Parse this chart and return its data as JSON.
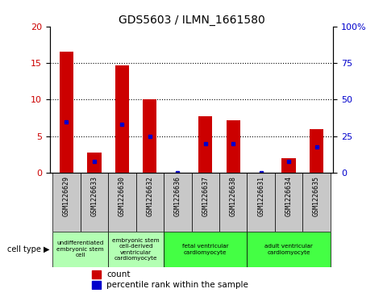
{
  "title": "GDS5603 / ILMN_1661580",
  "samples": [
    "GSM1226629",
    "GSM1226633",
    "GSM1226630",
    "GSM1226632",
    "GSM1226636",
    "GSM1226637",
    "GSM1226638",
    "GSM1226631",
    "GSM1226634",
    "GSM1226635"
  ],
  "counts": [
    16.5,
    2.8,
    14.7,
    10.0,
    0.0,
    7.7,
    7.2,
    0.0,
    2.0,
    6.0
  ],
  "percentiles": [
    35,
    8,
    33,
    25,
    0,
    20,
    20,
    0,
    8,
    18
  ],
  "ylim_left": [
    0,
    20
  ],
  "ylim_right": [
    0,
    100
  ],
  "yticks_left": [
    0,
    5,
    10,
    15,
    20
  ],
  "yticks_right": [
    0,
    25,
    50,
    75,
    100
  ],
  "ytick_labels_left": [
    "0",
    "5",
    "10",
    "15",
    "20"
  ],
  "ytick_labels_right": [
    "0",
    "25",
    "50",
    "75",
    "100%"
  ],
  "bar_color": "#cc0000",
  "dot_color": "#0000cc",
  "grid_color": "#000000",
  "cell_types": [
    {
      "label": "undifferentiated\nembryonic stem\ncell",
      "span": [
        0,
        2
      ],
      "color": "#b3ffb3"
    },
    {
      "label": "embryonic stem\ncell-derived\nventricular\ncardiomyocyte",
      "span": [
        2,
        4
      ],
      "color": "#b3ffb3"
    },
    {
      "label": "fetal ventricular\ncardiomyocyte",
      "span": [
        4,
        7
      ],
      "color": "#44ff44"
    },
    {
      "label": "adult ventricular\ncardiomyocyte",
      "span": [
        7,
        10
      ],
      "color": "#44ff44"
    }
  ],
  "cell_type_label": "cell type",
  "legend_items": [
    {
      "color": "#cc0000",
      "label": "count"
    },
    {
      "color": "#0000cc",
      "label": "percentile rank within the sample"
    }
  ],
  "bar_width": 0.5,
  "sample_box_color": "#c8c8c8"
}
